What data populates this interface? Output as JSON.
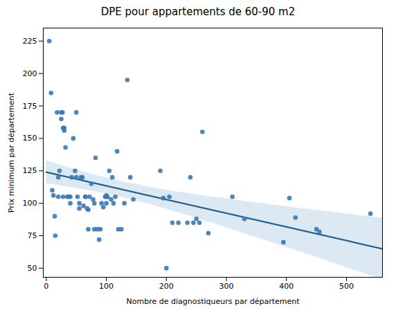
{
  "chart_data": {
    "type": "scatter",
    "title": "DPE pour appartements de 60-90 m2",
    "xlabel": "Nombre de diagnostiqueurs par département",
    "ylabel": "Prix minimum par département",
    "x": [
      5,
      8,
      10,
      12,
      14,
      15,
      18,
      20,
      20,
      22,
      25,
      25,
      27,
      28,
      28,
      30,
      30,
      32,
      35,
      38,
      40,
      40,
      42,
      45,
      48,
      50,
      50,
      52,
      55,
      55,
      58,
      60,
      62,
      65,
      65,
      68,
      70,
      70,
      72,
      75,
      78,
      80,
      80,
      82,
      85,
      88,
      90,
      92,
      95,
      98,
      100,
      100,
      100,
      102,
      105,
      108,
      110,
      112,
      115,
      118,
      120,
      125,
      130,
      135,
      140,
      145,
      190,
      195,
      200,
      205,
      210,
      220,
      235,
      240,
      245,
      250,
      255,
      260,
      270,
      310,
      330,
      395,
      405,
      415,
      450,
      455,
      540
    ],
    "values": [
      225,
      185,
      110,
      106,
      90,
      75,
      170,
      120,
      105,
      125,
      170,
      165,
      170,
      105,
      158,
      158,
      156,
      143,
      105,
      105,
      105,
      100,
      120,
      150,
      125,
      120,
      170,
      105,
      100,
      96,
      120,
      120,
      98,
      105,
      105,
      96,
      80,
      95,
      105,
      115,
      103,
      80,
      100,
      135,
      80,
      72,
      80,
      100,
      97,
      105,
      100,
      106,
      105,
      105,
      125,
      103,
      120,
      100,
      105,
      140,
      80,
      80,
      100,
      195,
      120,
      103,
      125,
      104,
      50,
      105,
      85,
      85,
      85,
      120,
      85,
      88,
      85,
      155,
      77,
      105,
      88,
      70,
      104,
      89,
      80,
      78,
      92
    ],
    "color": "#3a78b5",
    "regression_line": {
      "x": [
        0,
        560
      ],
      "values": [
        123.997,
        64.903
      ],
      "color": "#1f5f8b"
    },
    "confidence_band": {
      "x": [
        0,
        40,
        80,
        120,
        160,
        200,
        240,
        280,
        320,
        360,
        400,
        440,
        480,
        520,
        560
      ],
      "lower": [
        115.211,
        112.36,
        109.11,
        105.269,
        100.728,
        95.58,
        90.016,
        84.2,
        78.232,
        72.169,
        66.044,
        59.877,
        53.681,
        47.464,
        41.231
      ],
      "upper": [
        132.782,
        127.192,
        121.999,
        117.399,
        113.498,
        110.204,
        107.325,
        104.699,
        102.226,
        99.847,
        97.53,
        95.254,
        93.009,
        90.784,
        88.575
      ],
      "color": "#c5d8ea"
    },
    "xlim": [
      -5,
      560
    ],
    "ylim": [
      43,
      235
    ],
    "xticks": [
      0,
      100,
      200,
      300,
      400,
      500
    ],
    "yticks": [
      50,
      75,
      100,
      125,
      150,
      175,
      200,
      225
    ],
    "grid": false
  }
}
